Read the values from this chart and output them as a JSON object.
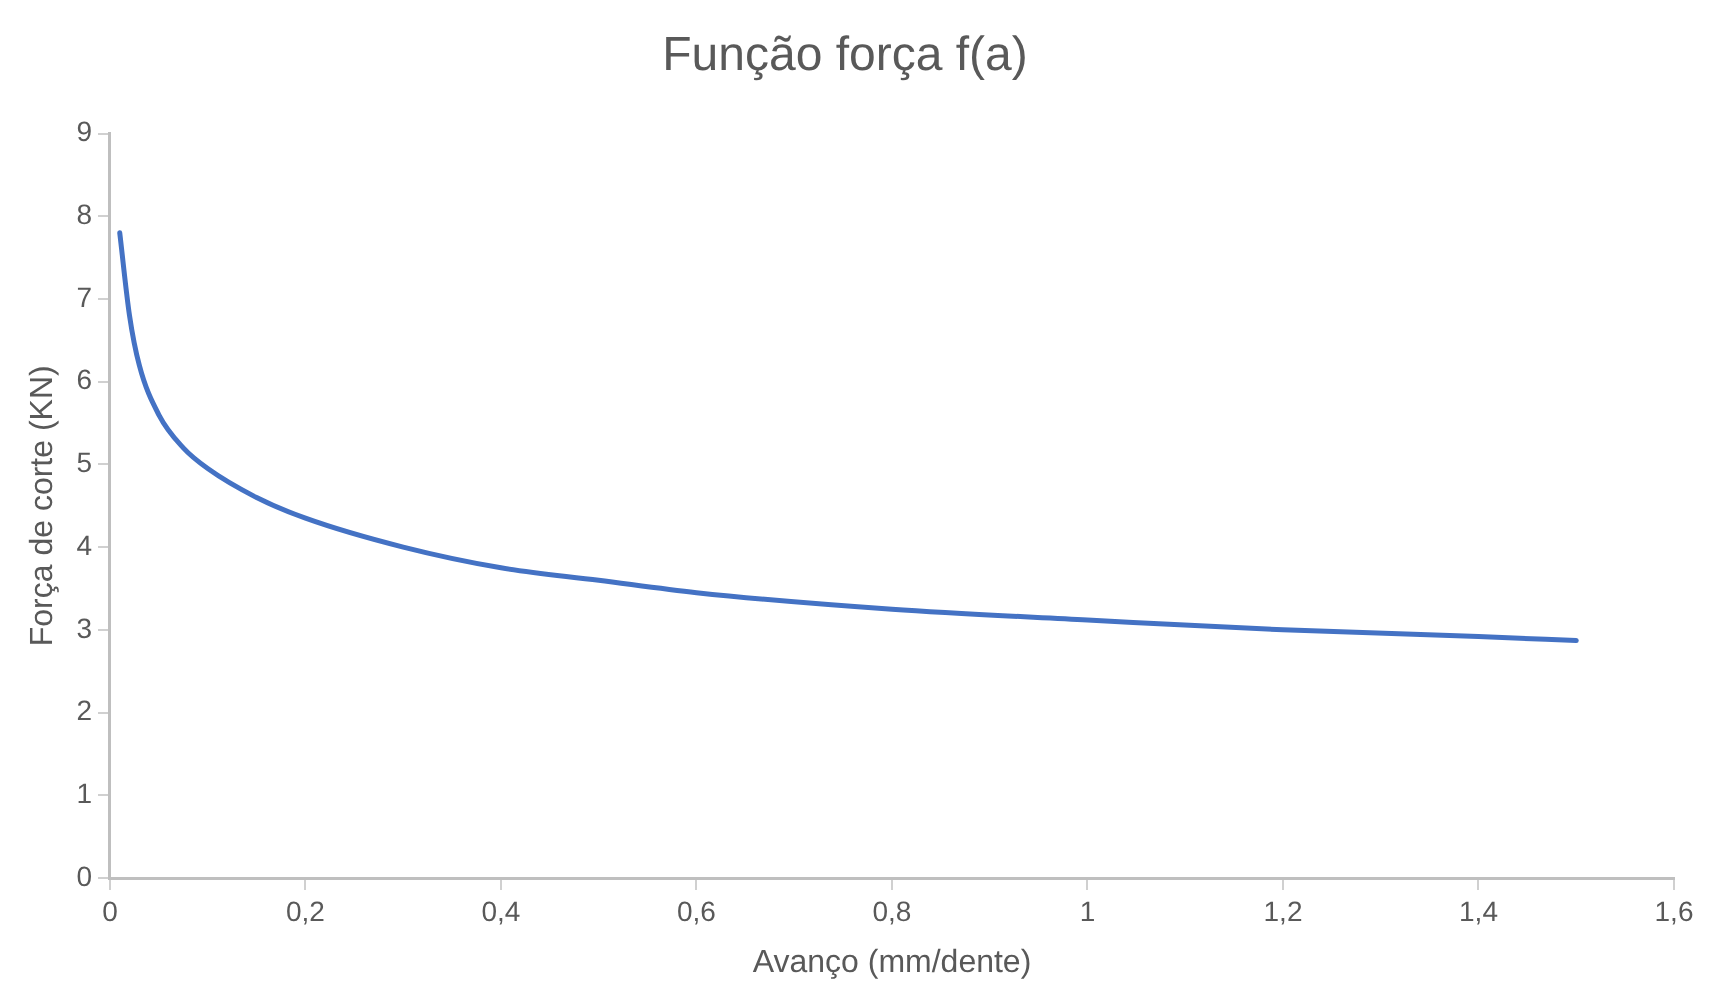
{
  "chart_data": {
    "type": "line",
    "title": "Função força f(a)",
    "xlabel": "Avanço (mm/dente)",
    "ylabel": "Força de corte (KN)",
    "x": [
      0.01,
      0.02,
      0.03,
      0.05,
      0.075,
      0.1,
      0.15,
      0.2,
      0.3,
      0.4,
      0.5,
      0.6,
      0.8,
      1.0,
      1.2,
      1.4,
      1.5
    ],
    "series": [
      {
        "color": "#4472c4",
        "values": [
          7.8,
          6.8,
          6.2,
          5.6,
          5.2,
          4.95,
          4.6,
          4.35,
          4.0,
          3.75,
          3.6,
          3.45,
          3.25,
          3.12,
          3.0,
          2.92,
          2.87
        ]
      }
    ],
    "xlim": [
      0,
      1.6
    ],
    "xticks": [
      0,
      {
        "value": 0.2,
        "label": "0,2"
      },
      {
        "value": 0.4,
        "label": "0,4"
      },
      {
        "value": 0.6,
        "label": "0,6"
      },
      {
        "value": 0.8,
        "label": "0,8"
      },
      1,
      {
        "value": 1.2,
        "label": "1,2"
      },
      {
        "value": 1.4,
        "label": "1,4"
      },
      {
        "value": 1.6,
        "label": "1,6"
      }
    ],
    "ylim": [
      0,
      9
    ],
    "yticks": [
      0,
      1,
      2,
      3,
      4,
      5,
      6,
      7,
      8,
      9
    ],
    "grid": false,
    "legend": false,
    "marker": "none",
    "line_style": "solid"
  }
}
